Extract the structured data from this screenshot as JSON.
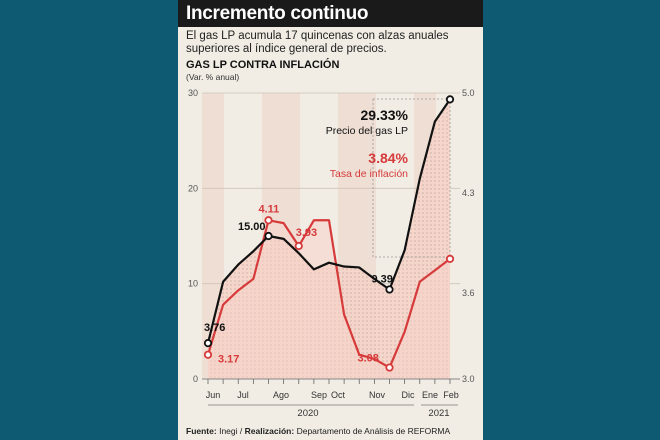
{
  "title": "Incremento continuo",
  "subtitle": "El gas LP acumula 17 quincenas con alzas anuales superiores al índice general de precios.",
  "chart_heading": "GAS LP CONTRA INFLACIÓN",
  "unit": "(Var. % anual)",
  "source": {
    "label": "Fuente:",
    "value": "Inegi",
    "sep": " / ",
    "label2": "Realización:",
    "value2": "Departamento de Análisis de REFORMA"
  },
  "colors": {
    "gas": "#111111",
    "inflation": "#d63a3a",
    "shade": "#f6d3c8",
    "background": "#0d5a72",
    "card": "#f1ece4"
  },
  "chart_data": {
    "type": "line",
    "x": [
      "Jun-1",
      "Jun-2",
      "Jul-1",
      "Jul-2",
      "Ago-1",
      "Ago-2",
      "Sep-1",
      "Sep-2",
      "Oct-1",
      "Oct-2",
      "Nov-1",
      "Nov-2",
      "Dic-1",
      "Dic-2",
      "Ene-1",
      "Ene-2",
      "Feb-1"
    ],
    "month_labels": [
      "Jun",
      "Jul",
      "Ago",
      "Sep",
      "Oct",
      "Nov",
      "Dic",
      "Ene",
      "Feb"
    ],
    "year_labels": [
      "2020",
      "2021"
    ],
    "y_left_ticks": [
      "0",
      "10",
      "20",
      "30"
    ],
    "y_right_ticks": [
      "3.0",
      "3.6",
      "4.3",
      "5.0"
    ],
    "ylim_left": [
      0,
      30
    ],
    "ylim_right": [
      3.0,
      5.0
    ],
    "series": [
      {
        "name": "Precio del gas LP",
        "axis": "left",
        "values": [
          3.76,
          10.2,
          12.0,
          13.4,
          15.0,
          14.7,
          13.2,
          11.5,
          12.2,
          11.8,
          11.7,
          10.5,
          9.39,
          13.5,
          21.0,
          27.0,
          29.33
        ]
      },
      {
        "name": "Tasa de inflación",
        "axis": "right",
        "values": [
          3.17,
          3.52,
          3.62,
          3.7,
          4.11,
          4.09,
          3.93,
          4.11,
          4.11,
          3.45,
          3.17,
          3.14,
          3.08,
          3.33,
          3.68,
          3.76,
          3.84
        ]
      }
    ],
    "annotations": [
      {
        "text": "3.76",
        "series": 0,
        "index": 0
      },
      {
        "text": "15.00",
        "series": 0,
        "index": 4
      },
      {
        "text": "9.39",
        "series": 0,
        "index": 12
      },
      {
        "text": "3.17",
        "series": 1,
        "index": 0
      },
      {
        "text": "4.11",
        "series": 1,
        "index": 4
      },
      {
        "text": "3.93",
        "series": 1,
        "index": 6
      },
      {
        "text": "3.08",
        "series": 1,
        "index": 12
      }
    ],
    "callouts": [
      {
        "value": "29.33%",
        "label": "Precio del gas LP",
        "series": 0
      },
      {
        "value": "3.84%",
        "label": "Tasa de inflación",
        "series": 1
      }
    ]
  }
}
